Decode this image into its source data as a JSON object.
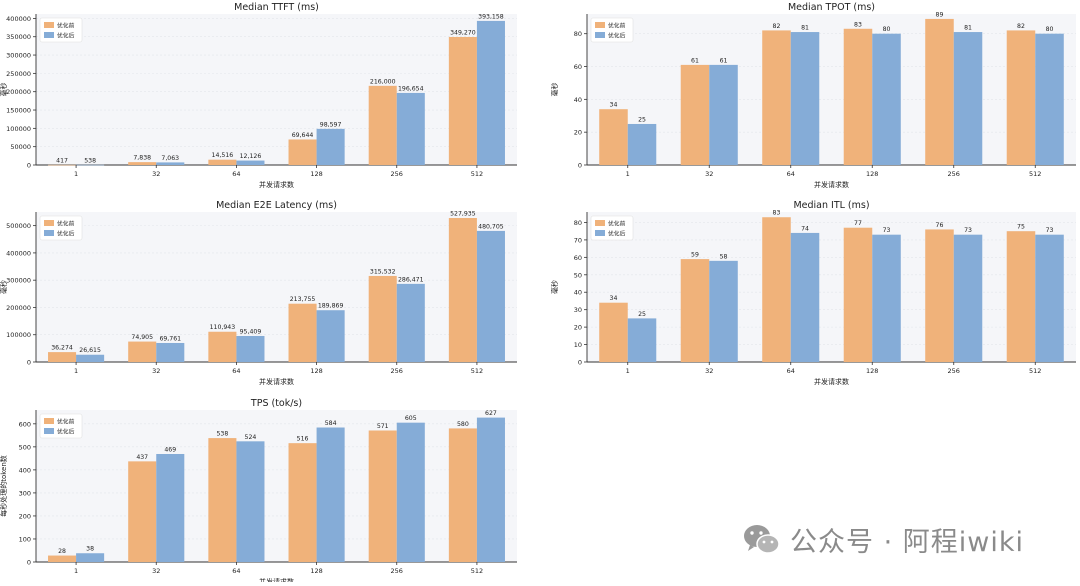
{
  "colors": {
    "before": "#f0b27a",
    "after": "#85acd7",
    "plot_bg": "#f5f6f9",
    "axis": "#333333"
  },
  "chart_data": [
    {
      "type": "bar",
      "title": "Median TTFT (ms)",
      "xlabel": "并发请求数",
      "ylabel": "毫秒",
      "categories": [
        "1",
        "32",
        "64",
        "128",
        "256",
        "512"
      ],
      "series": [
        {
          "name": "优化前",
          "values": [
            417,
            7838,
            14516,
            69644,
            216000,
            349270
          ]
        },
        {
          "name": "优化后",
          "values": [
            538,
            7063,
            12126,
            98597,
            196654,
            393158
          ]
        }
      ],
      "value_labels": [
        [
          "417",
          "7,838",
          "14,516",
          "69,644",
          "216,000",
          "349,270"
        ],
        [
          "538",
          "7,063",
          "12,126",
          "98,597",
          "196,654",
          "393,158"
        ]
      ],
      "ylim": [
        0,
        412000
      ],
      "yticks": [
        0,
        50000,
        100000,
        150000,
        200000,
        250000,
        300000,
        350000,
        400000
      ]
    },
    {
      "type": "bar",
      "title": "Median TPOT (ms)",
      "xlabel": "并发请求数",
      "ylabel": "毫秒",
      "categories": [
        "1",
        "32",
        "64",
        "128",
        "256",
        "512"
      ],
      "series": [
        {
          "name": "优化前",
          "values": [
            34,
            61,
            82,
            83,
            89,
            82
          ]
        },
        {
          "name": "优化后",
          "values": [
            25,
            61,
            81,
            80,
            81,
            80
          ]
        }
      ],
      "value_labels": [
        [
          "34",
          "61",
          "82",
          "83",
          "89",
          "82"
        ],
        [
          "25",
          "61",
          "81",
          "80",
          "81",
          "80"
        ]
      ],
      "ylim": [
        0,
        92
      ],
      "yticks": [
        0,
        20,
        40,
        60,
        80
      ]
    },
    {
      "type": "bar",
      "title": "Median E2E Latency (ms)",
      "xlabel": "并发请求数",
      "ylabel": "毫秒",
      "categories": [
        "1",
        "32",
        "64",
        "128",
        "256",
        "512"
      ],
      "series": [
        {
          "name": "优化前",
          "values": [
            36274,
            74905,
            110943,
            213755,
            315532,
            527935
          ]
        },
        {
          "name": "优化后",
          "values": [
            26615,
            69761,
            95409,
            189869,
            286471,
            480705
          ]
        }
      ],
      "value_labels": [
        [
          "36,274",
          "74,905",
          "110,943",
          "213,755",
          "315,532",
          "527,935"
        ],
        [
          "26,615",
          "69,761",
          "95,409",
          "189,869",
          "286,471",
          "480,705"
        ]
      ],
      "ylim": [
        0,
        550000
      ],
      "yticks": [
        0,
        100000,
        200000,
        300000,
        400000,
        500000
      ]
    },
    {
      "type": "bar",
      "title": "Median ITL (ms)",
      "xlabel": "并发请求数",
      "ylabel": "毫秒",
      "categories": [
        "1",
        "32",
        "64",
        "128",
        "256",
        "512"
      ],
      "series": [
        {
          "name": "优化前",
          "values": [
            34,
            59,
            83,
            77,
            76,
            75
          ]
        },
        {
          "name": "优化后",
          "values": [
            25,
            58,
            74,
            73,
            73,
            73
          ]
        }
      ],
      "value_labels": [
        [
          "34",
          "59",
          "83",
          "77",
          "76",
          "75"
        ],
        [
          "25",
          "58",
          "74",
          "73",
          "73",
          "73"
        ]
      ],
      "ylim": [
        0,
        86
      ],
      "yticks": [
        0,
        10,
        20,
        30,
        40,
        50,
        60,
        70,
        80
      ]
    },
    {
      "type": "bar",
      "title": "TPS (tok/s)",
      "xlabel": "并发请求数",
      "ylabel": "每秒处理的token数",
      "categories": [
        "1",
        "32",
        "64",
        "128",
        "256",
        "512"
      ],
      "series": [
        {
          "name": "优化前",
          "values": [
            28,
            437,
            538,
            516,
            571,
            580
          ]
        },
        {
          "name": "优化后",
          "values": [
            38,
            469,
            524,
            584,
            605,
            627
          ]
        }
      ],
      "value_labels": [
        [
          "28",
          "437",
          "538",
          "516",
          "571",
          "580"
        ],
        [
          "38",
          "469",
          "524",
          "584",
          "605",
          "627"
        ]
      ],
      "ylim": [
        0,
        660
      ],
      "yticks": [
        0,
        100,
        200,
        300,
        400,
        500,
        600
      ]
    }
  ],
  "watermark": {
    "text": "公众号 · 阿程iwiki",
    "icon": "wechat-icon"
  }
}
